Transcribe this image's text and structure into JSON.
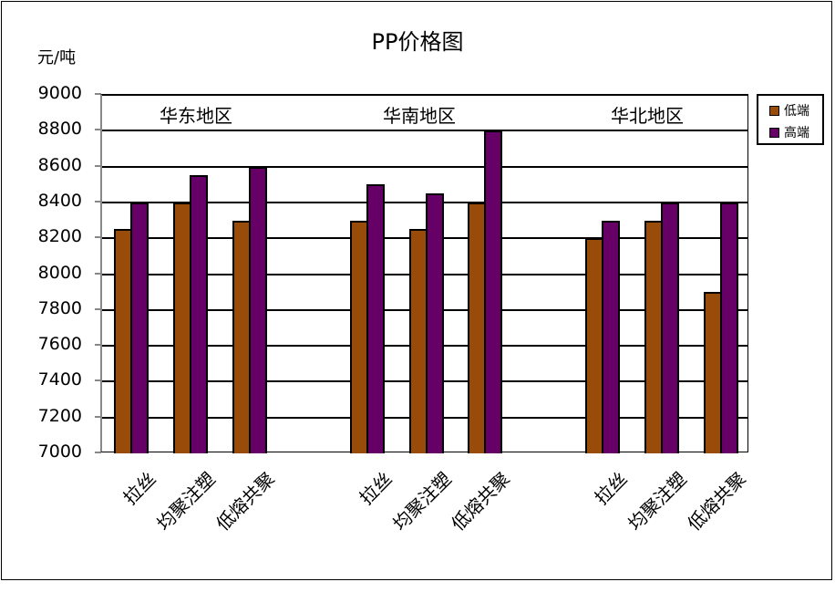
{
  "chart_data": {
    "type": "bar",
    "title": "PP价格图",
    "ylabel": "元/吨",
    "xlabel": "",
    "ylim": [
      7000,
      9000
    ],
    "yticks": [
      7000,
      7200,
      7400,
      7600,
      7800,
      8000,
      8200,
      8400,
      8600,
      8800,
      9000
    ],
    "grid": true,
    "legend_position": "right",
    "groups": [
      {
        "region": "华东地区",
        "categories": [
          "拉丝",
          "均聚注塑",
          "低熔共聚"
        ]
      },
      {
        "region": "华南地区",
        "categories": [
          "拉丝",
          "均聚注塑",
          "低熔共聚"
        ]
      },
      {
        "region": "华北地区",
        "categories": [
          "拉丝",
          "均聚注塑",
          "低熔共聚"
        ]
      }
    ],
    "categories": [
      "华东地区-拉丝",
      "华东地区-均聚注塑",
      "华东地区-低熔共聚",
      "华南地区-拉丝",
      "华南地区-均聚注塑",
      "华南地区-低熔共聚",
      "华北地区-拉丝",
      "华北地区-均聚注塑",
      "华北地区-低熔共聚"
    ],
    "series": [
      {
        "name": "低端",
        "color": "#994C0A",
        "values": [
          8250,
          8400,
          8300,
          8300,
          8250,
          8400,
          8200,
          8300,
          7900
        ]
      },
      {
        "name": "高端",
        "color": "#660066",
        "values": [
          8400,
          8550,
          8600,
          8500,
          8450,
          8800,
          8300,
          8400,
          8400
        ]
      }
    ]
  },
  "labels": {
    "title": "PP价格图",
    "unit": "元/吨",
    "legend": [
      "低端",
      "高端"
    ],
    "regions": [
      "华东地区",
      "华南地区",
      "华北地区"
    ]
  }
}
